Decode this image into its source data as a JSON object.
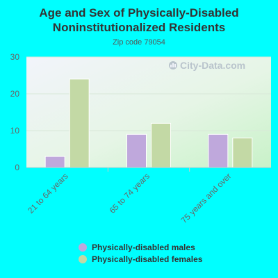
{
  "chart_data": {
    "type": "bar",
    "title": "Age and Sex of Physically-Disabled Noninstitutionalized Residents",
    "subtitle": "Zip code 79054",
    "categories": [
      "21 to 64 years",
      "65 to 74 years",
      "75 years and over"
    ],
    "series": [
      {
        "name": "Physically-disabled males",
        "values": [
          3,
          9,
          9
        ],
        "color": "#bfa8dc"
      },
      {
        "name": "Physically-disabled females",
        "values": [
          24,
          12,
          8
        ],
        "color": "#c3d9a5"
      }
    ],
    "ylim": [
      0,
      30
    ],
    "yticks": [
      0,
      10,
      20,
      30
    ],
    "xlabel": "",
    "ylabel": "",
    "grid": true,
    "legend_position": "bottom",
    "watermark": "City-Data.com"
  }
}
